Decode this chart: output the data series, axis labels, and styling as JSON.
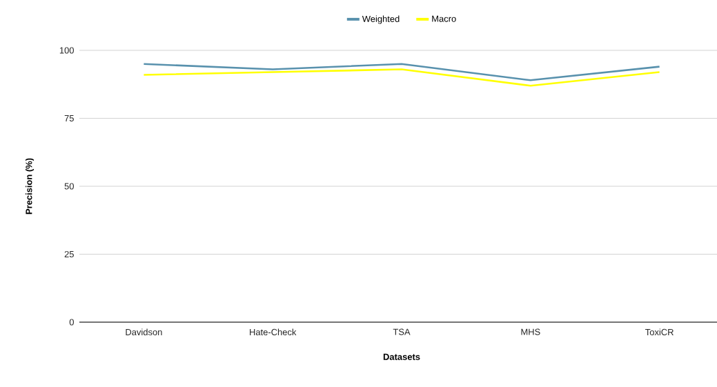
{
  "chart_data": {
    "type": "line",
    "xlabel": "Datasets",
    "ylabel": "Precision (%)",
    "categories": [
      "Davidson",
      "Hate-Check",
      "TSA",
      "MHS",
      "ToxiCR"
    ],
    "series": [
      {
        "name": "Weighted",
        "color": "#5891ad",
        "values": [
          95,
          93,
          95,
          89,
          94
        ]
      },
      {
        "name": "Macro",
        "color": "#ffff00",
        "values": [
          91,
          92,
          93,
          87,
          92
        ]
      }
    ],
    "ylim": [
      0,
      100
    ],
    "yticks": [
      0,
      25,
      50,
      75,
      100
    ],
    "grid": "y",
    "legend": "top",
    "marker": "none",
    "line_style": "solid"
  }
}
